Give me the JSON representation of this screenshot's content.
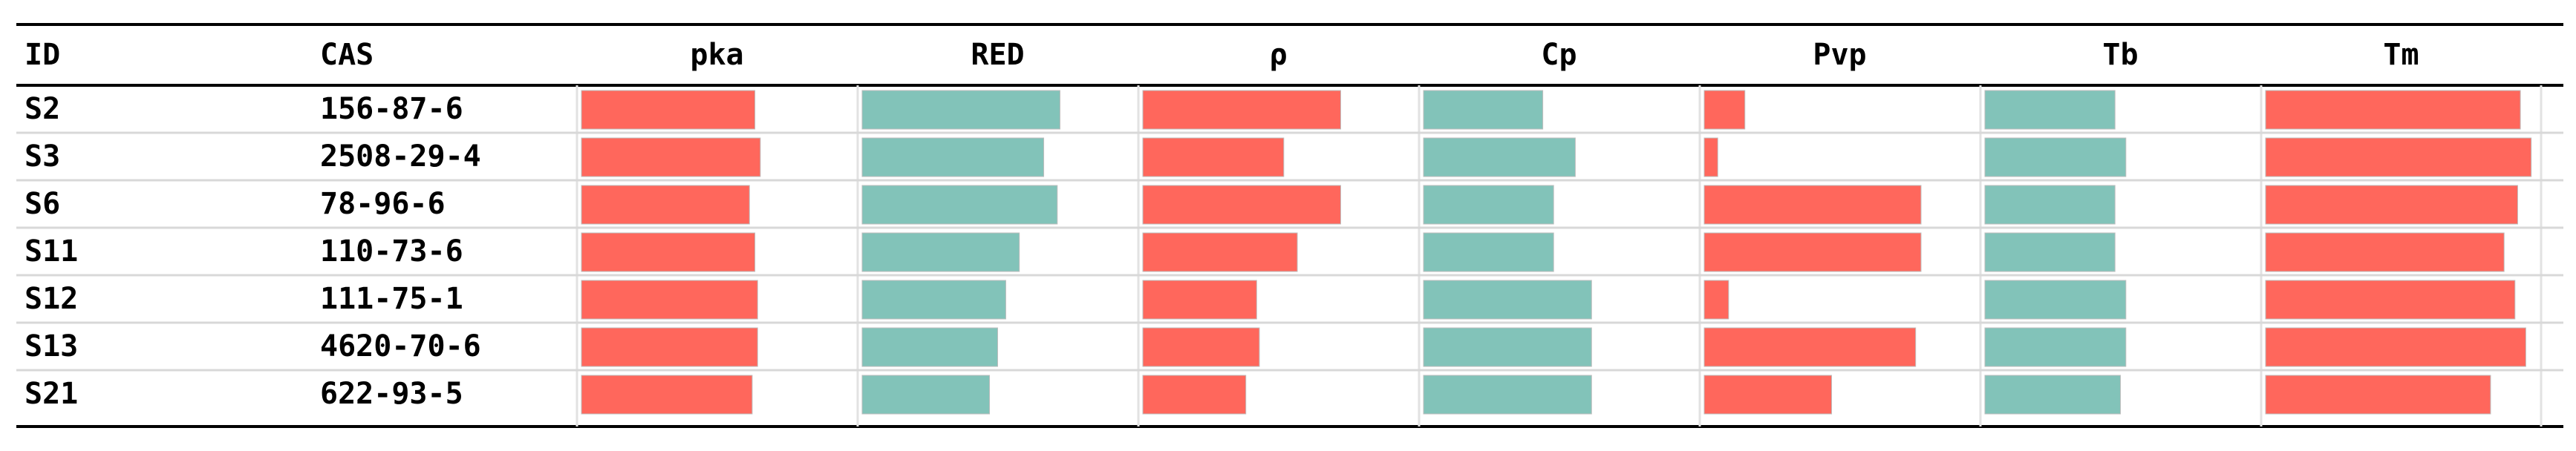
{
  "table": {
    "columns": [
      "ID",
      "CAS",
      "pka",
      "RED",
      "ρ",
      "Cp",
      "Pvp",
      "Tb",
      "Tm"
    ],
    "bar_colors": [
      "#ff675c",
      "#82c3b9",
      "#ff675c",
      "#82c3b9",
      "#ff675c",
      "#82c3b9",
      "#ff675c"
    ],
    "rows": [
      {
        "id": "S2",
        "cas": "156-87-6",
        "values": [
          64,
          73,
          73,
          44,
          15,
          48,
          94
        ]
      },
      {
        "id": "S3",
        "cas": "2508-29-4",
        "values": [
          66,
          67,
          52,
          56,
          5,
          52,
          98
        ]
      },
      {
        "id": "S6",
        "cas": "78-96-6",
        "values": [
          62,
          72,
          73,
          48,
          80,
          48,
          93
        ]
      },
      {
        "id": "S11",
        "cas": "110-73-6",
        "values": [
          64,
          58,
          57,
          48,
          80,
          48,
          88
        ]
      },
      {
        "id": "S12",
        "cas": "111-75-1",
        "values": [
          65,
          53,
          42,
          62,
          9,
          52,
          92
        ]
      },
      {
        "id": "S13",
        "cas": "4620-70-6",
        "values": [
          65,
          50,
          43,
          62,
          78,
          52,
          96
        ]
      },
      {
        "id": "S21",
        "cas": "622-93-5",
        "values": [
          63,
          47,
          38,
          62,
          47,
          50,
          83
        ]
      }
    ]
  }
}
